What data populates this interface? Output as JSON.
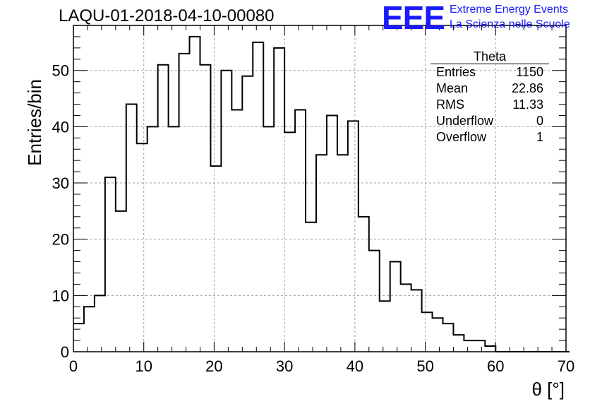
{
  "chart_data": {
    "type": "histogram",
    "title": "LAQU-01-2018-04-10-00080",
    "xlabel": "θ [°]",
    "ylabel": "Entries/bin",
    "xlim": [
      0,
      70
    ],
    "ylim": [
      0,
      58
    ],
    "x_ticks": [
      0,
      10,
      20,
      30,
      40,
      50,
      60,
      70
    ],
    "y_ticks": [
      0,
      10,
      20,
      30,
      40,
      50
    ],
    "grid": true,
    "bin_width": 1.5,
    "bin_edges_start": 0,
    "values": [
      5,
      8,
      10,
      31,
      25,
      44,
      37,
      40,
      51,
      40,
      53,
      56,
      51,
      33,
      50,
      43,
      49,
      55,
      40,
      54,
      39,
      43,
      23,
      35,
      42,
      35,
      41,
      24,
      18,
      9,
      16,
      12,
      11,
      7,
      6,
      5,
      3,
      2,
      2,
      1,
      0,
      0,
      0,
      0,
      0,
      0,
      0
    ],
    "stats": {
      "name": "Theta",
      "rows": [
        {
          "label": "Entries",
          "value": "1150"
        },
        {
          "label": "Mean",
          "value": "22.86"
        },
        {
          "label": "RMS",
          "value": "11.33"
        },
        {
          "label": "Underflow",
          "value": "0"
        },
        {
          "label": "Overflow",
          "value": "1"
        }
      ]
    }
  },
  "logo": {
    "mark": "EEE",
    "line1": "Extreme Energy Events",
    "line2": "La Scienza nelle Scuole"
  },
  "colors": {
    "logo": "#1a1aff",
    "line": "#000000",
    "grid": "#a0a0a0"
  }
}
